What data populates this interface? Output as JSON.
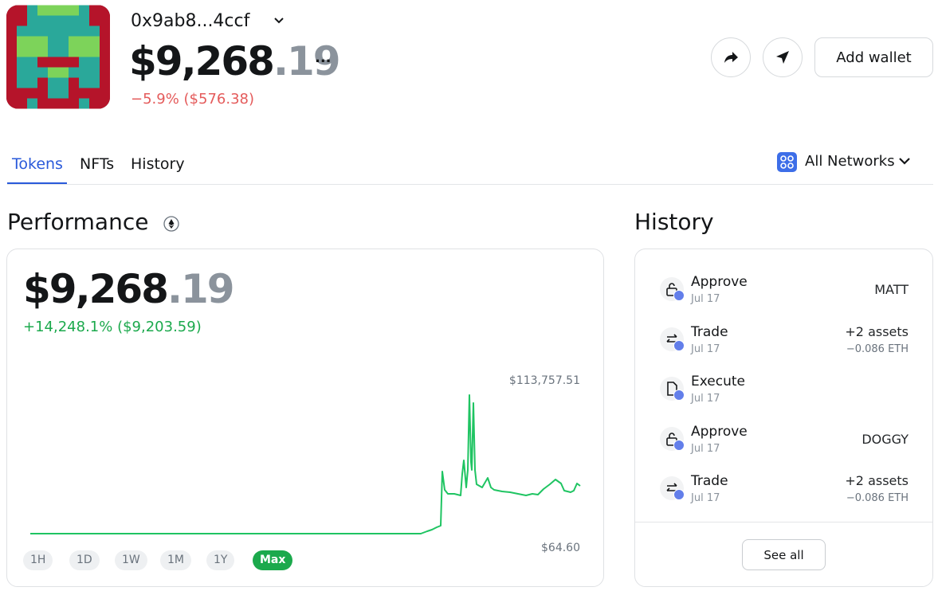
{
  "header": {
    "address": "0x9ab8...4ccf",
    "balance_whole": "$9,268",
    "balance_cents": ".19",
    "more": "...",
    "change": "−5.9% ($576.38)",
    "add_wallet": "Add wallet"
  },
  "tabs": [
    "Tokens",
    "NFTs",
    "History"
  ],
  "network": "All Networks",
  "performance": {
    "title": "Performance",
    "value_whole": "$9,268",
    "value_cents": ".19",
    "change": "+14,248.1% ($9,203.59)",
    "max_label": "$113,757.51",
    "min_label": "$64.60",
    "ranges": [
      "1H",
      "1D",
      "1W",
      "1M",
      "1Y",
      "Max"
    ]
  },
  "history": {
    "title": "History",
    "items": [
      {
        "action": "Approve",
        "date": "Jul 17",
        "asset": "MATT"
      },
      {
        "action": "Trade",
        "date": "Jul 17",
        "asset": "+2 assets",
        "amount": "−0.086 ETH"
      },
      {
        "action": "Execute",
        "date": "Jul 17"
      },
      {
        "action": "Approve",
        "date": "Jul 17",
        "asset": "DOGGY"
      },
      {
        "action": "Trade",
        "date": "Jul 17",
        "asset": "+2 assets",
        "amount": "−0.086 ETH"
      }
    ],
    "see_all": "See all"
  }
}
